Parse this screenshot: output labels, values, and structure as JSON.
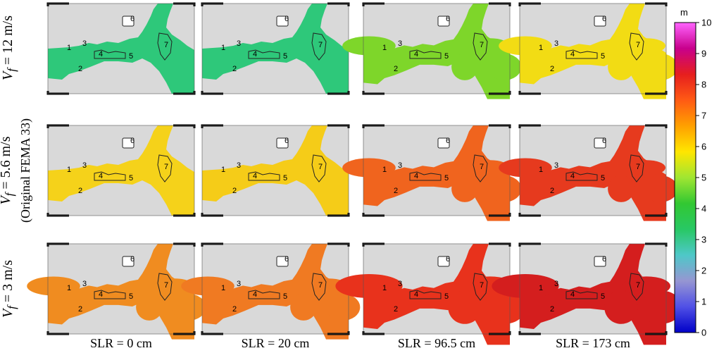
{
  "chart_data": {
    "type": "heatmap",
    "colorbar": {
      "unit": "m",
      "ticks": [
        "0",
        "1",
        "2",
        "3",
        "4",
        "5",
        "6",
        "7",
        "8",
        "9",
        "10"
      ],
      "range": [
        0,
        10
      ],
      "colors": [
        "#0000c8",
        "#5050e6",
        "#9696d2",
        "#4ec8c8",
        "#28c864",
        "#32c832",
        "#a0e632",
        "#ffe600",
        "#ffa000",
        "#ff5a14",
        "#e61e1e",
        "#c8008c",
        "#ff64ff"
      ]
    },
    "row_labels": [
      {
        "var": "V",
        "sub": "f",
        "text": " = 12 m/s",
        "extra": ""
      },
      {
        "var": "V",
        "sub": "f",
        "text": " = 5.6 m/s",
        "extra": "(Original FEMA 33)"
      },
      {
        "var": "V",
        "sub": "f",
        "text": " = 3 m/s",
        "extra": ""
      }
    ],
    "col_labels": [
      "SLR = 0 cm",
      "SLR = 20 cm",
      "SLR = 96.5 cm",
      "SLR = 173 cm"
    ],
    "region_labels": [
      "1",
      "2",
      "3",
      "4",
      "5",
      "6",
      "7"
    ],
    "panels": [
      [
        {
          "color": "#2ec87a"
        },
        {
          "color": "#2ec87a"
        },
        {
          "color": "#7ed62a"
        },
        {
          "color": "#f2dc14"
        }
      ],
      [
        {
          "color": "#f5d21a"
        },
        {
          "color": "#f5cc18"
        },
        {
          "color": "#f0641e"
        },
        {
          "color": "#e63a1e"
        }
      ],
      [
        {
          "color": "#f08c20"
        },
        {
          "color": "#f07a22"
        },
        {
          "color": "#e8321c"
        },
        {
          "color": "#d41e1e"
        }
      ]
    ]
  }
}
